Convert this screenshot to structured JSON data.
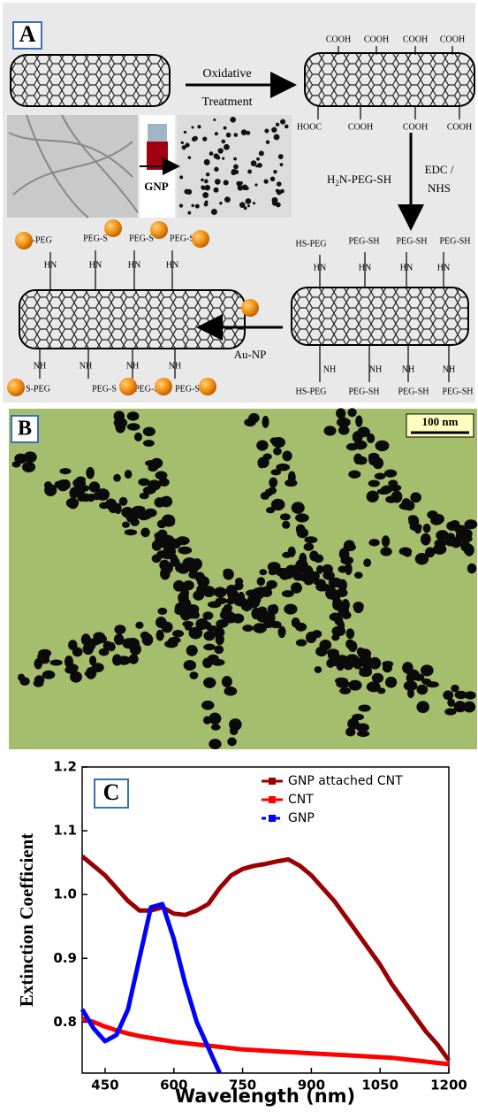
{
  "panel_a": {
    "label": "A",
    "oxidation_step": [
      "Oxidative",
      "Treatment"
    ],
    "cooh_top": [
      "COOH",
      "COOH",
      "COOH",
      "COOH"
    ],
    "cooh_bottom": [
      "HOOC",
      "COOH",
      "COOH",
      "COOH"
    ],
    "gnp_label": "GNP",
    "reagent": [
      "H",
      "2",
      "N-PEG-SH"
    ],
    "coupling": [
      "EDC /",
      "NHS"
    ],
    "peg_top": [
      "HS-PEG",
      "PEG-SH",
      "PEG-SH",
      "PEG-SH"
    ],
    "hn_right": [
      "HN",
      "HN",
      "HN",
      "HN"
    ],
    "nh_right": [
      "NH",
      "NH",
      "NH",
      "NH"
    ],
    "peg_bottom": [
      "HS-PEG",
      "PEG-SH",
      "PEG-SH",
      "PEG-SH"
    ],
    "au_np": "Au-NP",
    "conj_top": [
      "S-PEG",
      "PEG-S",
      "PEG-S",
      "PEG-S"
    ],
    "hn_left": [
      "HN",
      "HN",
      "HN",
      "HN"
    ],
    "nh_left": [
      "NH",
      "NH",
      "NH",
      "NH"
    ],
    "conj_bottom": [
      "S-PEG",
      "PEG-S",
      "PEG-S",
      "PEG-S"
    ]
  },
  "panel_b": {
    "label": "B",
    "scale_bar": "100 nm"
  },
  "chart_data": {
    "type": "line",
    "label": "C",
    "xlabel": "Wavelength (nm)",
    "ylabel": "Extinction Coefficient",
    "x": [
      400,
      425,
      450,
      475,
      500,
      525,
      550,
      575,
      600,
      625,
      650,
      675,
      700,
      725,
      750,
      775,
      800,
      825,
      850,
      875,
      900,
      925,
      950,
      975,
      1000,
      1025,
      1050,
      1075,
      1100,
      1125,
      1150,
      1175,
      1200
    ],
    "series": [
      {
        "name": "GNP attached CNT",
        "color": "#990000",
        "values": [
          1.06,
          1.045,
          1.03,
          1.01,
          0.99,
          0.975,
          0.975,
          0.98,
          0.97,
          0.968,
          0.975,
          0.985,
          1.01,
          1.03,
          1.04,
          1.045,
          1.048,
          1.052,
          1.055,
          1.045,
          1.03,
          1.01,
          0.99,
          0.965,
          0.94,
          0.915,
          0.89,
          0.86,
          0.835,
          0.81,
          0.785,
          0.765,
          0.74
        ]
      },
      {
        "name": "CNT",
        "color": "#ff0000",
        "values": [
          0.805,
          0.8,
          0.793,
          0.787,
          0.782,
          0.778,
          0.775,
          0.772,
          0.769,
          0.767,
          0.765,
          0.763,
          0.761,
          0.759,
          0.757,
          0.756,
          0.755,
          0.754,
          0.753,
          0.752,
          0.751,
          0.75,
          0.749,
          0.748,
          0.747,
          0.746,
          0.745,
          0.744,
          0.742,
          0.74,
          0.738,
          0.736,
          0.734
        ]
      },
      {
        "name": "GNP",
        "color": "#0000ff",
        "values": [
          0.82,
          0.79,
          0.77,
          0.78,
          0.82,
          0.9,
          0.98,
          0.985,
          0.93,
          0.86,
          0.8,
          0.76,
          0.72,
          null,
          null,
          null,
          null,
          null,
          null,
          null,
          null,
          null,
          null,
          null,
          null,
          null,
          null,
          null,
          null,
          null,
          null,
          null,
          null
        ]
      }
    ],
    "xlim": [
      400,
      1200
    ],
    "xticks": [
      450,
      600,
      750,
      900,
      1050,
      1200
    ],
    "ylim": [
      0.72,
      1.2
    ],
    "yticks": [
      0.8,
      0.9,
      {
        "value": 1,
        "label": "1.0"
      },
      1.1,
      1.2
    ],
    "legend": "upper right"
  }
}
